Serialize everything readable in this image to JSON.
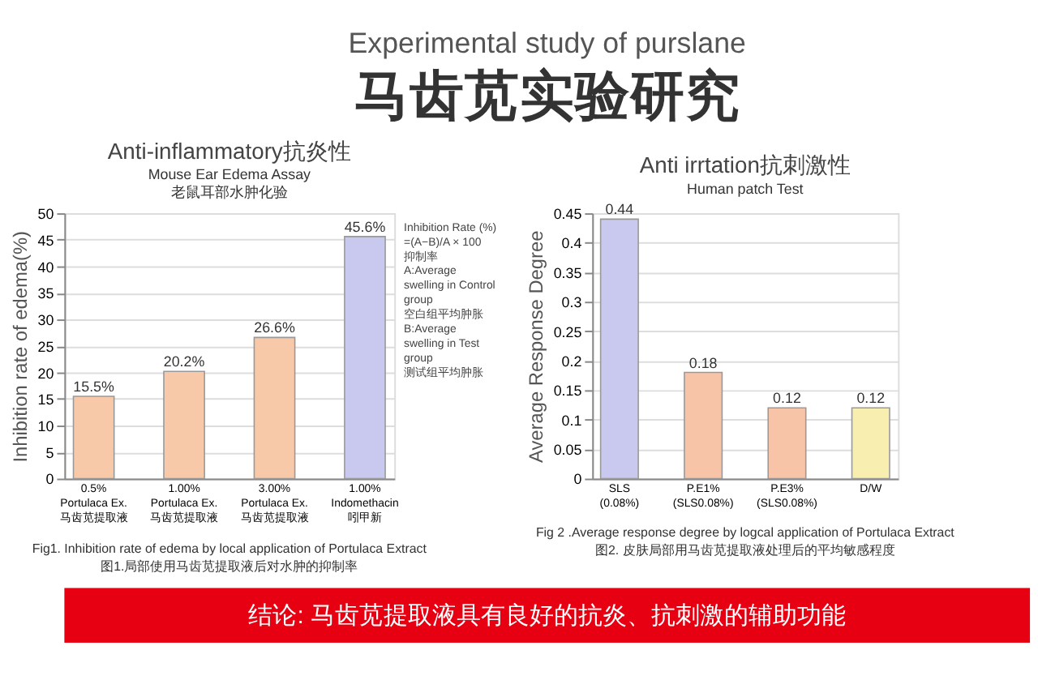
{
  "chart_data": [
    {
      "type": "other",
      "title": "Experimental study of purslane",
      "subtitle": "马齿苋实验研究"
    },
    {
      "type": "bar",
      "title": "Anti-inflammatory抗炎性",
      "subtitle": "Mouse Ear Edema Assay\n老鼠耳部水肿化验",
      "ylabel": "Inhibition rate of edema(%)",
      "categories": [
        "0.5%\nPortulaca Ex.\n马齿苋提取液",
        "1.00%\nPortulaca Ex.\n马齿苋提取液",
        "3.00%\nPortulaca Ex.\n马齿苋提取液",
        "1.00%\nIndomethacin\n吲甲新"
      ],
      "values": [
        15.5,
        20.2,
        26.6,
        45.6
      ],
      "colors": [
        "#f7c9a8",
        "#f7c9a8",
        "#f7c9a8",
        "#c9c9ef"
      ],
      "value_labels": [
        "15.5%",
        "20.2%",
        "26.6%",
        "45.6%"
      ],
      "ylim": [
        0,
        50
      ],
      "yticks": [
        0,
        5,
        10,
        15,
        20,
        25,
        30,
        35,
        40,
        45,
        50
      ],
      "grid": "y",
      "annotations": [
        "Inhibition Rate (%)\n=(A−B)/A × 100\n抑制率\nA:Average\nswelling in Control\ngroup\n空白组平均肿胀\nB:Average\nswelling in Test\ngroup\n测试组平均肿胀",
        "Fig1. Inhibition rate of edema by local application of  Portulaca Extract",
        "图1.局部使用马齿苋提取液后对水肿的抑制率"
      ]
    },
    {
      "type": "bar",
      "title": "Anti  irrtation抗刺激性",
      "subtitle": "Human patch Test",
      "ylabel": "Average Response Degree",
      "categories": [
        "SLS\n(0.08%)",
        "P.E1%\n(SLS0.08%)",
        "P.E3%\n(SLS0.08%)",
        "D/W"
      ],
      "values": [
        0.44,
        0.18,
        0.12,
        0.12
      ],
      "colors": [
        "#c9c9ef",
        "#f7c4a8",
        "#f7c4a8",
        "#f8eeb0"
      ],
      "data_labels": true,
      "ylim": [
        0,
        0.45
      ],
      "yticks": [
        0,
        0.05,
        0.1,
        0.15,
        0.2,
        0.25,
        0.3,
        0.35,
        0.4,
        0.45
      ],
      "grid": "y",
      "annotations": [
        "Fig 2 .Average  response  degree by logcal application of Portulaca Extract",
        "图2. 皮肤局部用马齿苋提取液处理后的平均敏感程度"
      ]
    },
    {
      "type": "other",
      "title": "结论:   马齿苋提取液具有良好的抗炎、抗刺激的辅助功能",
      "color": "#e60012"
    }
  ]
}
